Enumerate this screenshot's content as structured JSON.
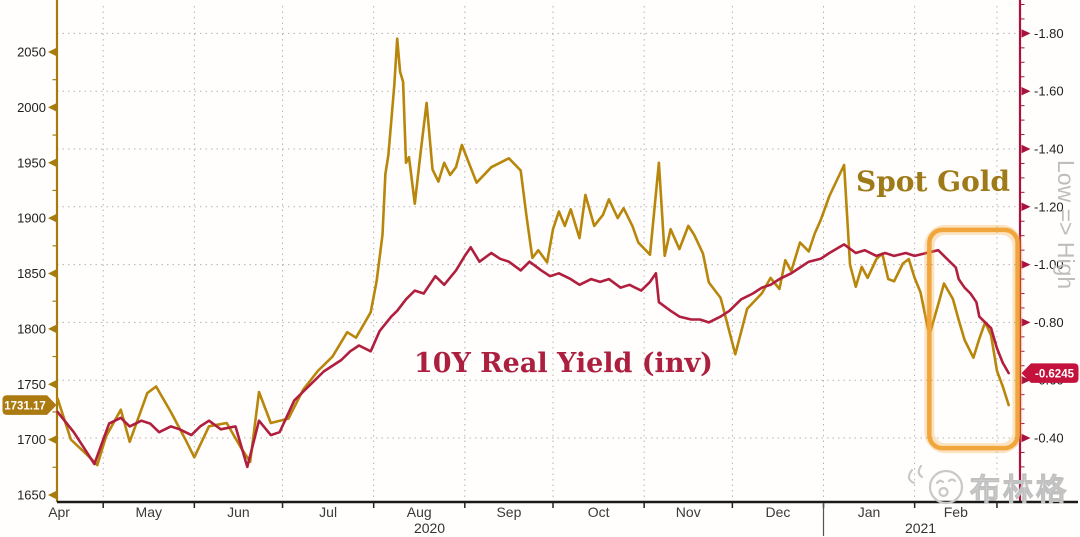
{
  "page": {
    "background": "#ffffff"
  },
  "watermark": {
    "text": "布林格",
    "mascot": "chick-face-icon",
    "color": "#c6c6c6"
  },
  "chart_data": {
    "type": "line",
    "title": "",
    "x_unit": "days since 2020-04-01",
    "x_axis": {
      "months": [
        {
          "label": "Apr",
          "start_day": 0
        },
        {
          "label": "May",
          "start_day": 30
        },
        {
          "label": "Jun",
          "start_day": 61
        },
        {
          "label": "Jul",
          "start_day": 91
        },
        {
          "label": "Aug",
          "start_day": 122
        },
        {
          "label": "Sep",
          "start_day": 153
        },
        {
          "label": "Oct",
          "start_day": 183
        },
        {
          "label": "Nov",
          "start_day": 214
        },
        {
          "label": "Dec",
          "start_day": 244
        },
        {
          "label": "Jan",
          "start_day": 275
        },
        {
          "label": "Feb",
          "start_day": 306
        },
        {
          "label": "",
          "start_day": 334
        }
      ],
      "years": [
        {
          "label": "2020",
          "at_day": 141
        },
        {
          "label": "2021",
          "at_day": 308
        }
      ],
      "year_divider_day": 275
    },
    "left_axis": {
      "ticks": [
        2050,
        2000,
        1950,
        1900,
        1850,
        1800,
        1750,
        1700,
        1650
      ],
      "color": "#A67C0E",
      "text_color": "#1f1f1f",
      "last_value_label": "1731.17",
      "last_value": 1731.17,
      "tag_color": "#AB7A10"
    },
    "right_axis": {
      "inverted": true,
      "ticks": [
        -1.8,
        -1.6,
        -1.4,
        -1.2,
        -1.0,
        -0.8,
        -0.6,
        -0.4
      ],
      "color": "#A8123C",
      "text_color": "#1f1f1f",
      "direction_label": "Low => High",
      "direction_label_color": "#bdbdbd",
      "last_value_label": "-0.6245",
      "last_value": -0.6245,
      "tag_color": "#C4123C"
    },
    "grid": {
      "color": "#b3b3b3",
      "style": "dotted"
    },
    "series": [
      {
        "name": "Spot Gold",
        "axis": "left",
        "color": "#B8860B",
        "label_color": "#9E7A18",
        "points": [
          [
            14.5,
            1737
          ],
          [
            19,
            1700
          ],
          [
            25,
            1685
          ],
          [
            28,
            1677
          ],
          [
            31,
            1703
          ],
          [
            36,
            1727
          ],
          [
            39,
            1698
          ],
          [
            45,
            1742
          ],
          [
            48,
            1748
          ],
          [
            53,
            1725
          ],
          [
            58,
            1700
          ],
          [
            61,
            1684
          ],
          [
            66,
            1712
          ],
          [
            72,
            1715
          ],
          [
            77,
            1692
          ],
          [
            80,
            1680
          ],
          [
            83,
            1743
          ],
          [
            87,
            1715
          ],
          [
            93,
            1719
          ],
          [
            98,
            1745
          ],
          [
            103,
            1762
          ],
          [
            108,
            1775
          ],
          [
            113,
            1797
          ],
          [
            116,
            1792
          ],
          [
            121,
            1815
          ],
          [
            123,
            1843
          ],
          [
            125,
            1885
          ],
          [
            126,
            1940
          ],
          [
            127,
            1957
          ],
          [
            129,
            2020
          ],
          [
            130,
            2062
          ],
          [
            131,
            2032
          ],
          [
            132,
            2023
          ],
          [
            133,
            1950
          ],
          [
            134,
            1955
          ],
          [
            136,
            1913
          ],
          [
            138,
            1960
          ],
          [
            140,
            2004
          ],
          [
            142,
            1944
          ],
          [
            144,
            1933
          ],
          [
            146,
            1950
          ],
          [
            148,
            1939
          ],
          [
            150,
            1946
          ],
          [
            152,
            1966
          ],
          [
            157,
            1932
          ],
          [
            162,
            1946
          ],
          [
            168,
            1954
          ],
          [
            172,
            1943
          ],
          [
            174,
            1901
          ],
          [
            176,
            1864
          ],
          [
            178,
            1871
          ],
          [
            181,
            1860
          ],
          [
            183,
            1890
          ],
          [
            185,
            1906
          ],
          [
            187,
            1893
          ],
          [
            189,
            1908
          ],
          [
            192,
            1882
          ],
          [
            194,
            1921
          ],
          [
            197,
            1893
          ],
          [
            200,
            1903
          ],
          [
            202,
            1917
          ],
          [
            205,
            1900
          ],
          [
            207,
            1909
          ],
          [
            210,
            1893
          ],
          [
            212,
            1878
          ],
          [
            216,
            1867
          ],
          [
            219,
            1950
          ],
          [
            221,
            1866
          ],
          [
            223,
            1890
          ],
          [
            226,
            1872
          ],
          [
            229,
            1893
          ],
          [
            231,
            1885
          ],
          [
            234,
            1868
          ],
          [
            236,
            1842
          ],
          [
            240,
            1828
          ],
          [
            245,
            1777
          ],
          [
            249,
            1818
          ],
          [
            254,
            1832
          ],
          [
            257,
            1846
          ],
          [
            260,
            1836
          ],
          [
            262,
            1862
          ],
          [
            264,
            1852
          ],
          [
            267,
            1878
          ],
          [
            270,
            1870
          ],
          [
            272,
            1886
          ],
          [
            274,
            1898
          ],
          [
            277,
            1920
          ],
          [
            282,
            1948
          ],
          [
            284,
            1858
          ],
          [
            286,
            1838
          ],
          [
            288,
            1856
          ],
          [
            290,
            1846
          ],
          [
            293,
            1863
          ],
          [
            295,
            1868
          ],
          [
            297,
            1845
          ],
          [
            299,
            1843
          ],
          [
            302,
            1859
          ],
          [
            304,
            1863
          ],
          [
            306,
            1846
          ],
          [
            308,
            1833
          ],
          [
            311,
            1794
          ],
          [
            314,
            1822
          ],
          [
            316,
            1841
          ],
          [
            319,
            1827
          ],
          [
            321,
            1808
          ],
          [
            323,
            1790
          ],
          [
            326,
            1774
          ],
          [
            328,
            1791
          ],
          [
            330,
            1806
          ],
          [
            332,
            1794
          ],
          [
            334,
            1762
          ],
          [
            336,
            1748
          ],
          [
            338,
            1731.17
          ]
        ]
      },
      {
        "name": "10Y Real Yield (inv)",
        "axis": "right",
        "color": "#B01F3E",
        "label_color": "#AC1F3F",
        "points": [
          [
            14.5,
            -0.49
          ],
          [
            20,
            -0.42
          ],
          [
            27,
            -0.31
          ],
          [
            32,
            -0.45
          ],
          [
            36,
            -0.47
          ],
          [
            39,
            -0.44
          ],
          [
            43,
            -0.46
          ],
          [
            46,
            -0.45
          ],
          [
            49,
            -0.42
          ],
          [
            53,
            -0.44
          ],
          [
            56,
            -0.43
          ],
          [
            60,
            -0.41
          ],
          [
            63,
            -0.44
          ],
          [
            66,
            -0.46
          ],
          [
            70,
            -0.43
          ],
          [
            75,
            -0.44
          ],
          [
            79,
            -0.3
          ],
          [
            83,
            -0.46
          ],
          [
            87,
            -0.41
          ],
          [
            90,
            -0.42
          ],
          [
            95,
            -0.53
          ],
          [
            100,
            -0.58
          ],
          [
            105,
            -0.63
          ],
          [
            111,
            -0.67
          ],
          [
            114,
            -0.7
          ],
          [
            117,
            -0.72
          ],
          [
            121,
            -0.7
          ],
          [
            124,
            -0.77
          ],
          [
            128,
            -0.82
          ],
          [
            130,
            -0.84
          ],
          [
            133,
            -0.88
          ],
          [
            136,
            -0.91
          ],
          [
            139,
            -0.9
          ],
          [
            143,
            -0.96
          ],
          [
            146,
            -0.93
          ],
          [
            150,
            -0.98
          ],
          [
            153,
            -1.03
          ],
          [
            155,
            -1.06
          ],
          [
            158,
            -1.01
          ],
          [
            162,
            -1.04
          ],
          [
            165,
            -1.02
          ],
          [
            168,
            -1.01
          ],
          [
            172,
            -0.98
          ],
          [
            175,
            -1.01
          ],
          [
            179,
            -0.98
          ],
          [
            182,
            -0.96
          ],
          [
            185,
            -0.97
          ],
          [
            189,
            -0.95
          ],
          [
            192,
            -0.93
          ],
          [
            196,
            -0.95
          ],
          [
            199,
            -0.94
          ],
          [
            202,
            -0.95
          ],
          [
            206,
            -0.92
          ],
          [
            209,
            -0.93
          ],
          [
            213,
            -0.91
          ],
          [
            216,
            -0.94
          ],
          [
            218,
            -0.97
          ],
          [
            219,
            -0.87
          ],
          [
            223,
            -0.84
          ],
          [
            226,
            -0.82
          ],
          [
            230,
            -0.81
          ],
          [
            233,
            -0.81
          ],
          [
            236,
            -0.8
          ],
          [
            240,
            -0.82
          ],
          [
            243,
            -0.84
          ],
          [
            247,
            -0.88
          ],
          [
            251,
            -0.9
          ],
          [
            254,
            -0.92
          ],
          [
            257,
            -0.93
          ],
          [
            260,
            -0.95
          ],
          [
            264,
            -0.97
          ],
          [
            267,
            -0.99
          ],
          [
            270,
            -1.01
          ],
          [
            274,
            -1.02
          ],
          [
            277,
            -1.04
          ],
          [
            282,
            -1.07
          ],
          [
            286,
            -1.04
          ],
          [
            289,
            -1.05
          ],
          [
            293,
            -1.03
          ],
          [
            296,
            -1.04
          ],
          [
            299,
            -1.03
          ],
          [
            303,
            -1.04
          ],
          [
            306,
            -1.03
          ],
          [
            310,
            -1.04
          ],
          [
            314,
            -1.05
          ],
          [
            316,
            -1.03
          ],
          [
            320,
            -0.99
          ],
          [
            321,
            -0.95
          ],
          [
            323,
            -0.92
          ],
          [
            325,
            -0.9
          ],
          [
            327,
            -0.87
          ],
          [
            328,
            -0.82
          ],
          [
            330,
            -0.8
          ],
          [
            332,
            -0.78
          ],
          [
            334,
            -0.71
          ],
          [
            336,
            -0.66
          ],
          [
            338,
            -0.6245
          ]
        ]
      }
    ],
    "annotations": {
      "spot_gold_label": "Spot Gold",
      "real_yield_label": "10Y Real Yield (inv)",
      "highlight_box": {
        "from_day": 311,
        "to_day": 341,
        "yield_top": -1.12,
        "yield_bottom": -0.365,
        "color": "#F1A63C"
      }
    }
  }
}
